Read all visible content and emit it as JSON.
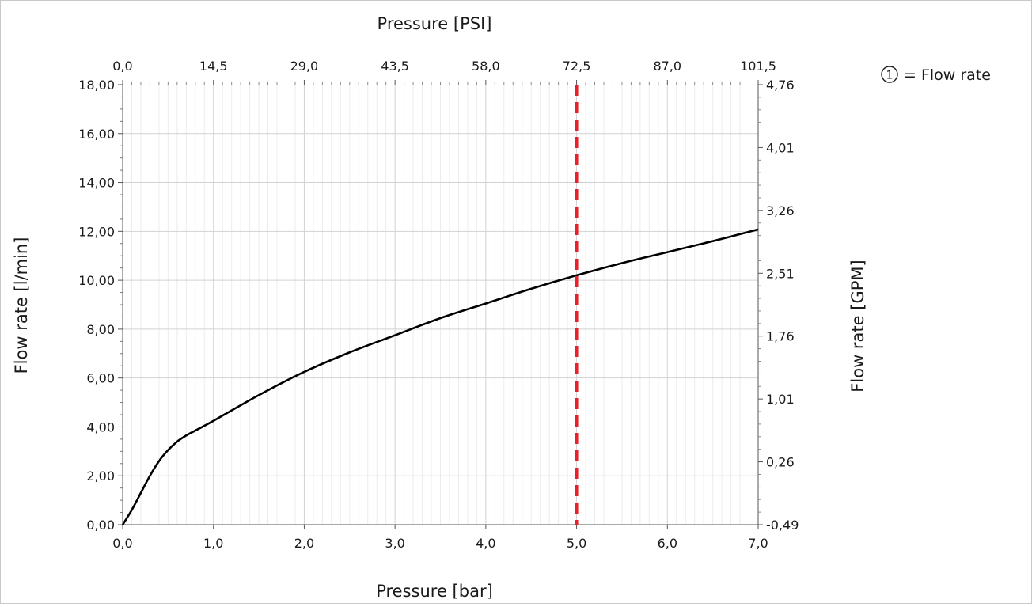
{
  "chart_data": {
    "type": "line",
    "title": "",
    "xlabel": "Pressure [bar]",
    "x2label": "Pressure [PSI]",
    "ylabel": "Flow rate [l/min]",
    "y2label": "Flow rate [GPM]",
    "xlim": [
      0,
      7
    ],
    "ylim": [
      0,
      18
    ],
    "x_ticks": [
      "0,0",
      "1,0",
      "2,0",
      "3,0",
      "4,0",
      "5,0",
      "6,0",
      "7,0"
    ],
    "x2_ticks": [
      "0,0",
      "14,5",
      "29,0",
      "43,5",
      "58,0",
      "72,5",
      "87,0",
      "101,5"
    ],
    "y_ticks": [
      "0,00",
      "2,00",
      "4,00",
      "6,00",
      "8,00",
      "10,00",
      "12,00",
      "14,00",
      "16,00",
      "18,00"
    ],
    "y2_ticks": [
      "-0,49",
      "0,26",
      "1,01",
      "1,76",
      "2,51",
      "3,26",
      "4,01",
      "4,76"
    ],
    "grid": true,
    "legend": {
      "marker": "1",
      "text": "= Flow rate",
      "position": "top-right"
    },
    "series": [
      {
        "color": "#000000",
        "x": [
          0,
          0.1,
          0.2,
          0.3,
          0.4,
          0.5,
          0.6,
          0.7,
          0.8,
          1.0,
          1.5,
          2.0,
          2.5,
          3.0,
          3.5,
          4.0,
          4.5,
          5.0,
          5.5,
          6.0,
          6.5,
          7.0
        ],
        "y": [
          0,
          0.6,
          1.3,
          2.0,
          2.6,
          3.05,
          3.4,
          3.65,
          3.85,
          4.25,
          5.3,
          6.25,
          7.05,
          7.75,
          8.45,
          9.05,
          9.65,
          10.2,
          10.7,
          11.15,
          11.6,
          12.08
        ]
      }
    ],
    "markers": [
      {
        "type": "vline",
        "x": 5.0,
        "color": "#e8222a",
        "style": "dashed"
      }
    ]
  }
}
